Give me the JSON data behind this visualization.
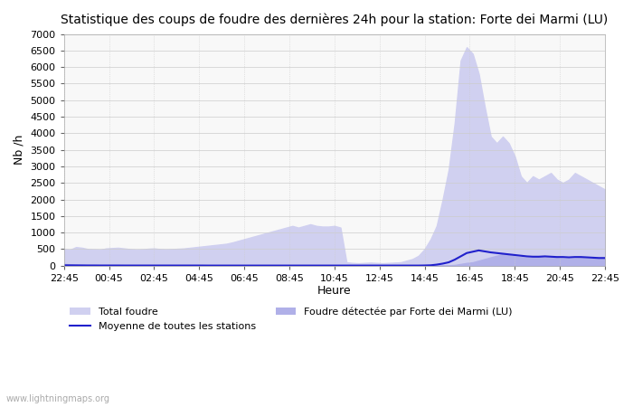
{
  "title": "Statistique des coups de foudre des dernières 24h pour la station: Forte dei Marmi (LU)",
  "xlabel": "Heure",
  "ylabel": "Nb /h",
  "ylim": [
    0,
    7000
  ],
  "yticks": [
    0,
    500,
    1000,
    1500,
    2000,
    2500,
    3000,
    3500,
    4000,
    4500,
    5000,
    5500,
    6000,
    6500,
    7000
  ],
  "xtick_labels": [
    "22:45",
    "00:45",
    "02:45",
    "04:45",
    "06:45",
    "08:45",
    "10:45",
    "12:45",
    "14:45",
    "16:45",
    "18:45",
    "20:45",
    "22:45"
  ],
  "bg_color": "#ffffff",
  "plot_bg_color": "#f8f8f8",
  "grid_color": "#cccccc",
  "total_foudre_color": "#d0d0f0",
  "local_foudre_color": "#b0b0e8",
  "moyenne_color": "#2020cc",
  "watermark": "www.lightningmaps.org",
  "legend_labels": [
    "Total foudre",
    "Foudre détectée par Forte dei Marmi (LU)",
    "Moyenne de toutes les stations"
  ],
  "total_foudre": [
    500,
    480,
    560,
    540,
    500,
    490,
    480,
    520,
    530,
    540,
    520,
    500,
    480,
    490,
    510,
    520,
    500,
    490,
    500,
    510,
    520,
    540,
    560,
    580,
    600,
    620,
    640,
    660,
    700,
    750,
    800,
    850,
    900,
    950,
    1000,
    1050,
    1100,
    1150,
    1200,
    1150,
    1200,
    1250,
    1200,
    1180,
    1180,
    1200,
    1150,
    100,
    80,
    70,
    80,
    90,
    80,
    70,
    80,
    90,
    100,
    150,
    200,
    300,
    500,
    800,
    1200,
    2000,
    2900,
    4300,
    6200,
    6600,
    6400,
    5800,
    4800,
    3900,
    3700,
    3900,
    3700,
    3300,
    2700,
    2500,
    2700,
    2600,
    2700,
    2800,
    2600,
    2500,
    2600,
    2800,
    2700,
    2600,
    2500,
    2400,
    2300
  ],
  "local_foudre": [
    50,
    40,
    30,
    20,
    10,
    10,
    10,
    10,
    10,
    10,
    10,
    10,
    10,
    10,
    10,
    10,
    10,
    10,
    10,
    10,
    10,
    10,
    10,
    10,
    10,
    10,
    10,
    10,
    10,
    10,
    10,
    10,
    10,
    10,
    10,
    10,
    10,
    10,
    10,
    10,
    10,
    10,
    10,
    10,
    10,
    10,
    10,
    5,
    5,
    5,
    5,
    5,
    5,
    5,
    5,
    5,
    5,
    5,
    5,
    5,
    5,
    5,
    5,
    5,
    10,
    20,
    50,
    80,
    100,
    150,
    200,
    250,
    300,
    350,
    320,
    280,
    260,
    240,
    250,
    260,
    250,
    240,
    230,
    220,
    210,
    220,
    230,
    220,
    210,
    200,
    200
  ],
  "moyenne": [
    10,
    8,
    7,
    6,
    5,
    5,
    4,
    4,
    4,
    4,
    3,
    3,
    3,
    3,
    3,
    3,
    3,
    3,
    3,
    3,
    3,
    3,
    3,
    3,
    2,
    2,
    2,
    2,
    2,
    2,
    2,
    2,
    2,
    2,
    2,
    2,
    2,
    2,
    2,
    2,
    2,
    2,
    2,
    2,
    2,
    2,
    2,
    2,
    2,
    2,
    2,
    2,
    2,
    2,
    2,
    2,
    2,
    2,
    2,
    2,
    5,
    10,
    30,
    60,
    100,
    180,
    280,
    380,
    420,
    460,
    430,
    400,
    380,
    360,
    340,
    320,
    300,
    280,
    270,
    270,
    280,
    270,
    260,
    260,
    250,
    260,
    260,
    250,
    240,
    230,
    230
  ]
}
